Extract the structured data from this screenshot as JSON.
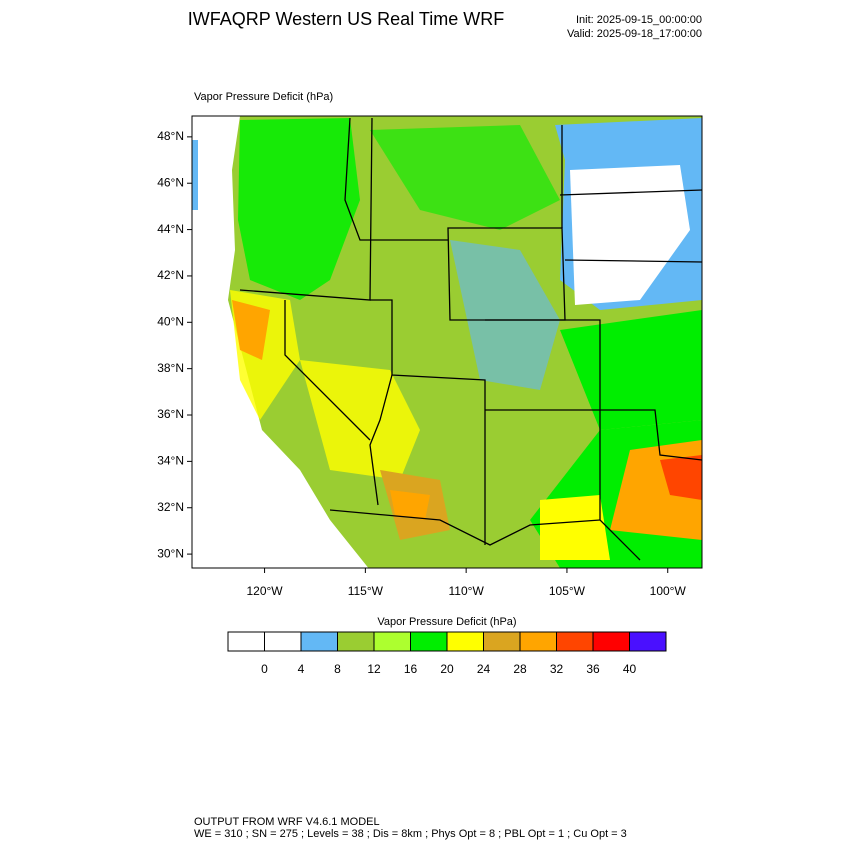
{
  "title": "IWFAQRP Western US Real Time WRF",
  "init": "Init: 2025-09-15_00:00:00",
  "valid": "Valid: 2025-09-18_17:00:00",
  "map": {
    "subtitle": "Vapor Pressure Deficit   (hPa)",
    "xlim": [
      -123.6,
      -98.3
    ],
    "ylim": [
      29.4,
      48.9
    ],
    "yticks": [
      {
        "value": 30,
        "label": "30°N"
      },
      {
        "value": 32,
        "label": "32°N"
      },
      {
        "value": 34,
        "label": "34°N"
      },
      {
        "value": 36,
        "label": "36°N"
      },
      {
        "value": 38,
        "label": "38°N"
      },
      {
        "value": 40,
        "label": "40°N"
      },
      {
        "value": 42,
        "label": "42°N"
      },
      {
        "value": 44,
        "label": "44°N"
      },
      {
        "value": 46,
        "label": "46°N"
      },
      {
        "value": 48,
        "label": "48°N"
      }
    ],
    "xticks": [
      {
        "value": -120,
        "label": "120°W"
      },
      {
        "value": -115,
        "label": "115°W"
      },
      {
        "value": -110,
        "label": "110°W"
      },
      {
        "value": -105,
        "label": "105°W"
      },
      {
        "value": -100,
        "label": "100°W"
      }
    ]
  },
  "colorbar": {
    "label": "Vapor Pressure Deficit  (hPa)",
    "levels": [
      0,
      4,
      8,
      12,
      16,
      20,
      24,
      28,
      32,
      36,
      40
    ],
    "colors": [
      "#ffffff",
      "#ffffff",
      "#63b8f5",
      "#9acd32",
      "#adff2f",
      "#00ee00",
      "#ffff00",
      "#daa520",
      "#ffa500",
      "#ff4500",
      "#ff0000",
      "#4a10ff"
    ]
  },
  "footer": {
    "line1": "OUTPUT FROM WRF V4.6.1 MODEL",
    "line2": "WE = 310 ; SN = 275 ; Levels = 38 ; Dis = 8km ; Phys Opt = 8 ; PBL Opt = 1 ; Cu Opt = 3"
  }
}
